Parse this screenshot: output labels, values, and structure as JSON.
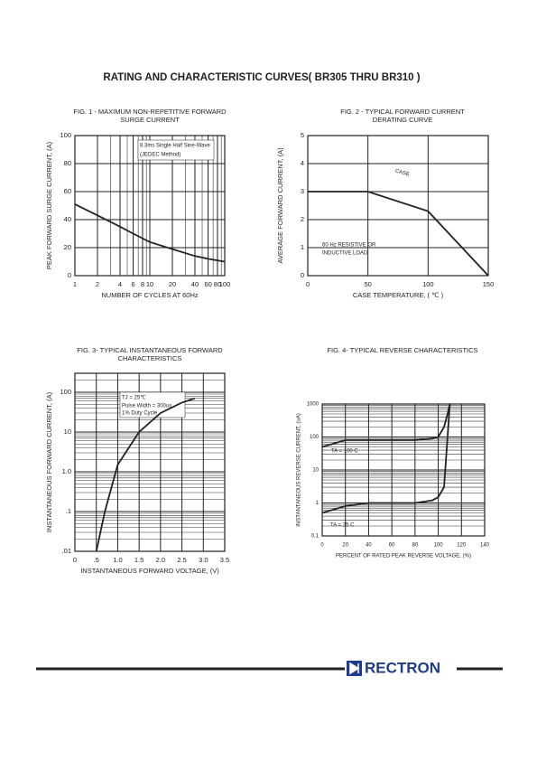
{
  "page": {
    "title": "RATING AND CHARACTERISTIC CURVES( BR305 THRU BR310 )",
    "brand": "RECTRON"
  },
  "chart_data": [
    {
      "type": "line",
      "title": [
        "FIG. 1 - MAXIMUM NON-REPETITIVE FORWARD",
        "SURGE CURRENT"
      ],
      "x_label": "NUMBER OF CYCLES AT 60Hz",
      "y_label": "PEAK FORWARD SURGE CURRENT, (A)",
      "x_log": true,
      "y_log": false,
      "grid": true,
      "color": "#222222",
      "xlim": [
        1,
        100
      ],
      "xticks": [
        1,
        2,
        4,
        6,
        8,
        10,
        20,
        40,
        60,
        80,
        100
      ],
      "ylim": [
        0,
        100
      ],
      "yticks": [
        0,
        20,
        40,
        60,
        80,
        100
      ],
      "x": [
        1,
        2,
        4,
        6,
        10,
        20,
        40,
        60,
        100
      ],
      "series": [
        {
          "values": [
            51,
            43,
            35,
            30,
            24,
            19,
            14,
            12,
            10
          ]
        }
      ],
      "annotations": [
        "8.3ms Single Half Sine-Wave",
        "(JEDEC Method)"
      ]
    },
    {
      "type": "line",
      "title": [
        "FIG. 2 - TYPICAL FORWARD CURRENT",
        "DERATING CURVE"
      ],
      "x_label": "CASE TEMPERATURE, ( ℃ )",
      "y_label": "AVERAGE FORWARD CURRENT, (A)",
      "x_log": false,
      "y_log": false,
      "grid": true,
      "color": "#222222",
      "xlim": [
        0,
        150
      ],
      "xticks": [
        0,
        50,
        100,
        150
      ],
      "ylim": [
        0,
        5
      ],
      "yticks": [
        0,
        1,
        2,
        3,
        4,
        5
      ],
      "x": [
        0,
        50,
        100,
        150
      ],
      "series": [
        {
          "values": [
            3,
            3,
            2.3,
            0
          ]
        }
      ],
      "annotations": [
        "CASE",
        "60 Hz RESISTIVE OR",
        "INDUCTIVE LOAD"
      ]
    },
    {
      "type": "line",
      "title": [
        "FIG. 3- TYPICAL INSTANTANEOUS FORWARD",
        "CHARACTERISTICS"
      ],
      "x_label": "INSTANTANEOUS FORWARD VOLTAGE, (V)",
      "y_label": "INSTANTANEOUS FORWARD CURRENT, (A)",
      "x_log": false,
      "y_log": true,
      "grid": true,
      "color": "#222222",
      "xlim": [
        0,
        3.5
      ],
      "xticks": [
        0,
        {
          "value": 0.5,
          "label": ".5"
        },
        {
          "value": 1,
          "label": "1.0"
        },
        1.5,
        {
          "value": 2,
          "label": "2.0"
        },
        2.5,
        {
          "value": 3,
          "label": "3.0"
        },
        3.5
      ],
      "ylim": [
        0.01,
        300
      ],
      "yticks": [
        {
          "value": 0.01,
          "label": ".01"
        },
        {
          "value": 0.1,
          "label": ".1"
        },
        {
          "value": 1,
          "label": "1.0"
        },
        10,
        100
      ],
      "x": [
        0.5,
        0.7,
        1.0,
        1.5,
        2.0,
        2.5,
        2.8
      ],
      "series": [
        {
          "values": [
            0.01,
            0.1,
            1.5,
            10,
            30,
            55,
            70
          ]
        }
      ],
      "annotations": [
        "TJ = 25℃",
        "Pulse Width = 300us",
        "1% Duty Cycle"
      ]
    },
    {
      "type": "line",
      "title": [
        "FIG. 4- TYPICAL REVERSE CHARACTERISTICS"
      ],
      "x_label": "PERCENT OF RATED PEAK REVERSE VOLTAGE, (%)",
      "y_label": "INSTANTANEOUS REVERSE CURRENT, (uA)",
      "x_log": false,
      "y_log": true,
      "grid": true,
      "color": "#222222",
      "xlim": [
        0,
        140
      ],
      "xticks": [
        0,
        20,
        40,
        60,
        80,
        100,
        120,
        140
      ],
      "ylim": [
        0.1,
        1000
      ],
      "yticks": [
        0.1,
        1,
        10,
        100,
        1000
      ],
      "x": [
        0,
        20,
        40,
        60,
        80,
        95,
        100,
        105,
        108,
        110
      ],
      "series": [
        {
          "values": [
            50,
            80,
            80,
            80,
            80,
            90,
            100,
            200,
            500,
            1000
          ]
        },
        {
          "values": [
            0.5,
            0.8,
            1,
            1,
            1,
            1.2,
            1.5,
            3,
            100,
            1000
          ]
        }
      ],
      "annotations": [
        "TA = 100 C",
        "TA = 25 C"
      ]
    }
  ]
}
